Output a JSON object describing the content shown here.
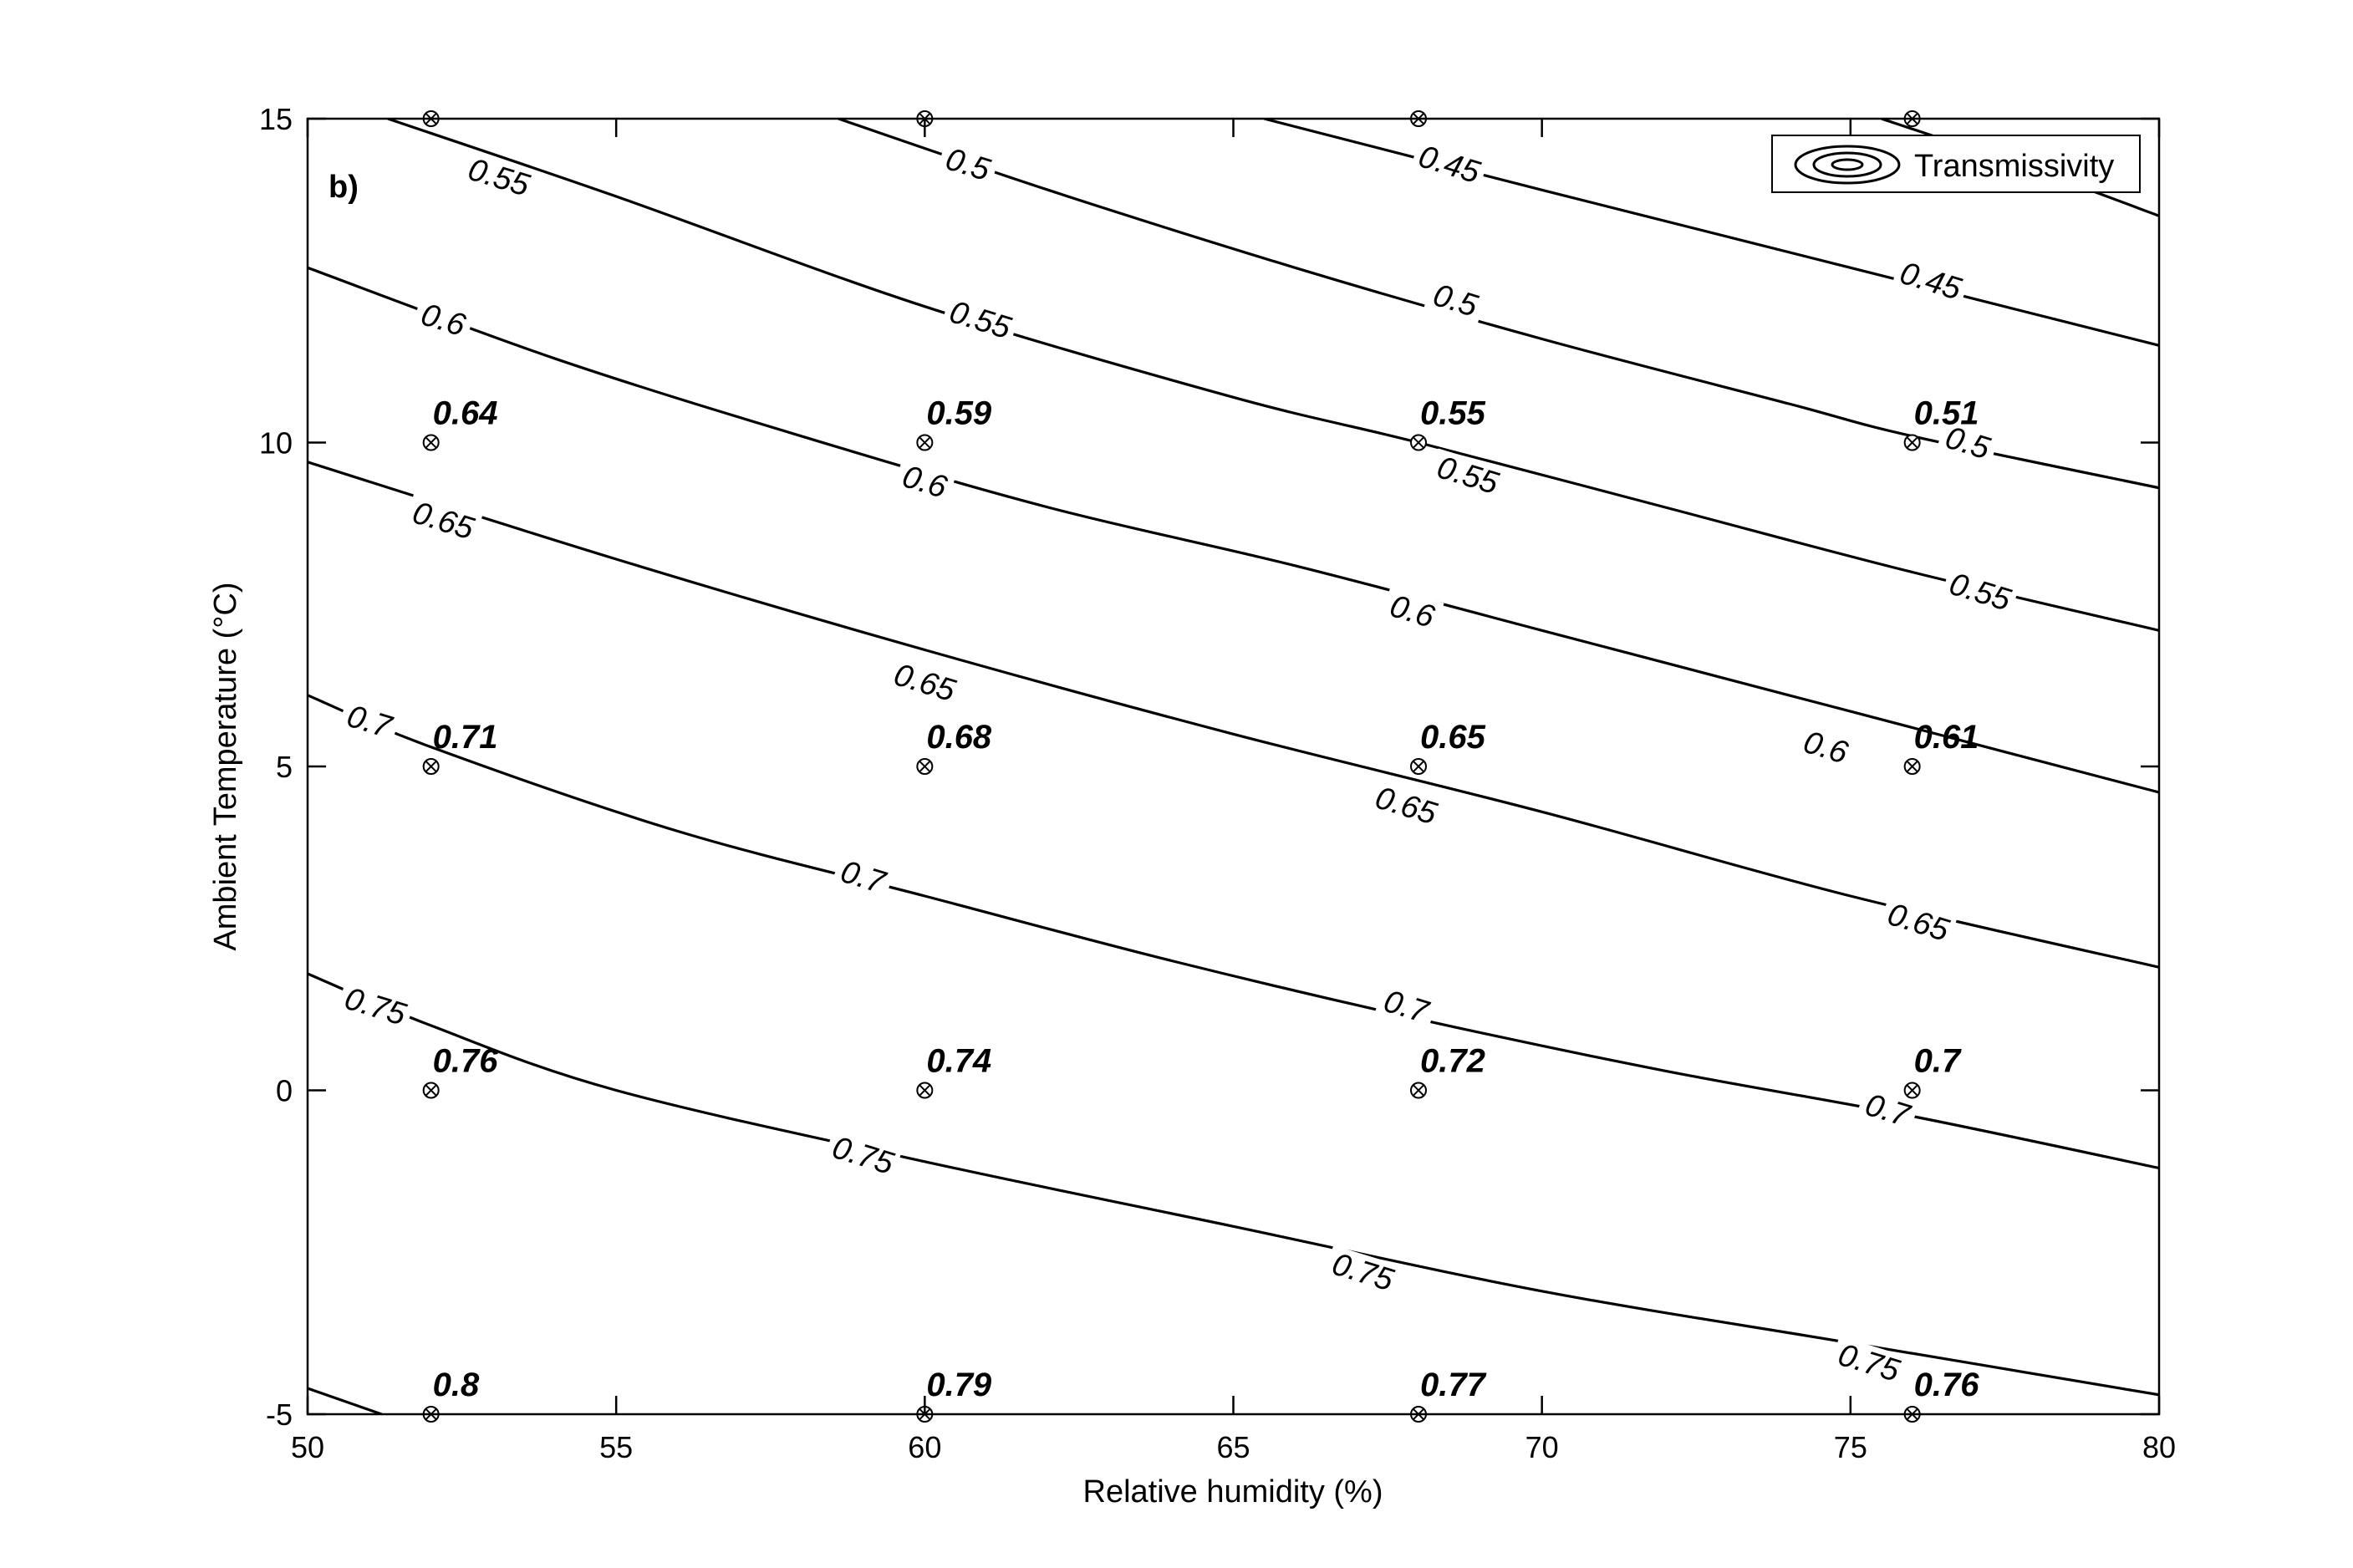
{
  "chart_data": {
    "type": "contour",
    "panel_label": "b)",
    "xlabel": "Relative humidity (%)",
    "ylabel": "Ambient Temperature (°C)",
    "xlim": [
      50,
      80
    ],
    "ylim": [
      -5,
      15
    ],
    "xticks": [
      50,
      55,
      60,
      65,
      70,
      75,
      80
    ],
    "yticks": [
      -5,
      0,
      5,
      10,
      15
    ],
    "grid": false,
    "legend": {
      "entries": [
        "Transmissivity"
      ],
      "placement": "top-right"
    },
    "series_name": "Transmissivity",
    "contours": [
      {
        "level": 0.45,
        "points": [
          [
            65.5,
            15
          ],
          [
            70,
            13.9
          ],
          [
            75,
            12.7
          ],
          [
            80,
            11.5
          ]
        ]
      },
      {
        "level": 0.45,
        "points": [
          [
            75.5,
            15
          ],
          [
            78,
            14.2
          ],
          [
            80,
            13.5
          ]
        ]
      },
      {
        "level": 0.5,
        "points": [
          [
            58.6,
            15
          ],
          [
            62,
            13.9
          ],
          [
            66,
            12.7
          ],
          [
            70,
            11.6
          ],
          [
            74,
            10.6
          ],
          [
            76,
            10.1
          ],
          [
            80,
            9.3
          ]
        ]
      },
      {
        "level": 0.55,
        "points": [
          [
            51.3,
            15
          ],
          [
            55,
            13.8
          ],
          [
            60,
            12.1
          ],
          [
            65,
            10.7
          ],
          [
            68,
            10.0
          ],
          [
            72,
            9.0
          ],
          [
            76,
            8.0
          ],
          [
            80,
            7.1
          ]
        ]
      },
      {
        "level": 0.6,
        "points": [
          [
            50,
            12.7
          ],
          [
            54,
            11.3
          ],
          [
            58,
            10.1
          ],
          [
            62,
            9.0
          ],
          [
            66,
            8.1
          ],
          [
            70,
            7.1
          ],
          [
            74,
            6.1
          ],
          [
            76,
            5.6
          ],
          [
            80,
            4.6
          ]
        ]
      },
      {
        "level": 0.65,
        "points": [
          [
            50,
            9.7
          ],
          [
            55,
            8.2
          ],
          [
            60,
            6.8
          ],
          [
            65,
            5.5
          ],
          [
            70,
            4.3
          ],
          [
            75,
            3.0
          ],
          [
            80,
            1.9
          ]
        ]
      },
      {
        "level": 0.7,
        "points": [
          [
            50,
            6.1
          ],
          [
            52,
            5.3
          ],
          [
            56,
            4.0
          ],
          [
            60,
            3.0
          ],
          [
            64,
            2.0
          ],
          [
            68,
            1.1
          ],
          [
            72,
            0.3
          ],
          [
            76,
            -0.4
          ],
          [
            80,
            -1.2
          ]
        ]
      },
      {
        "level": 0.75,
        "points": [
          [
            50,
            1.8
          ],
          [
            52,
            1.0
          ],
          [
            55,
            0.0
          ],
          [
            60,
            -1.1
          ],
          [
            65,
            -2.1
          ],
          [
            70,
            -3.1
          ],
          [
            75,
            -3.9
          ],
          [
            80,
            -4.7
          ]
        ]
      },
      {
        "level": 0.8,
        "points": [
          [
            50,
            -4.6
          ],
          [
            51.2,
            -5
          ]
        ]
      }
    ],
    "contour_labels": [
      {
        "text": "0.55",
        "x": 53.1,
        "y": 14.1,
        "angle": 17
      },
      {
        "text": "0.5",
        "x": 60.7,
        "y": 14.3,
        "angle": 17
      },
      {
        "text": "0.45",
        "x": 68.5,
        "y": 14.3,
        "angle": 17
      },
      {
        "text": "0.55",
        "x": 60.9,
        "y": 11.9,
        "angle": 17
      },
      {
        "text": "0.5",
        "x": 68.6,
        "y": 12.2,
        "angle": 17
      },
      {
        "text": "0.45",
        "x": 76.3,
        "y": 12.5,
        "angle": 17
      },
      {
        "text": "0.6",
        "x": 52.2,
        "y": 11.9,
        "angle": 17
      },
      {
        "text": "0.6",
        "x": 60.0,
        "y": 9.4,
        "angle": 17
      },
      {
        "text": "0.55",
        "x": 68.8,
        "y": 9.5,
        "angle": 17
      },
      {
        "text": "0.5",
        "x": 76.9,
        "y": 10.0,
        "angle": 17
      },
      {
        "text": "0.65",
        "x": 52.2,
        "y": 8.8,
        "angle": 17
      },
      {
        "text": "0.6",
        "x": 67.9,
        "y": 7.4,
        "angle": 17
      },
      {
        "text": "0.55",
        "x": 77.1,
        "y": 7.7,
        "angle": 17
      },
      {
        "text": "0.65",
        "x": 60.0,
        "y": 6.3,
        "angle": 17
      },
      {
        "text": "0.6",
        "x": 74.6,
        "y": 5.3,
        "angle": 17
      },
      {
        "text": "0.7",
        "x": 51.0,
        "y": 5.7,
        "angle": 17
      },
      {
        "text": "0.65",
        "x": 67.8,
        "y": 4.4,
        "angle": 17
      },
      {
        "text": "0.7",
        "x": 59.0,
        "y": 3.3,
        "angle": 17
      },
      {
        "text": "0.65",
        "x": 76.1,
        "y": 2.6,
        "angle": 17
      },
      {
        "text": "0.75",
        "x": 51.1,
        "y": 1.3,
        "angle": 17
      },
      {
        "text": "0.7",
        "x": 67.8,
        "y": 1.3,
        "angle": 17
      },
      {
        "text": "0.75",
        "x": 59.0,
        "y": -1.0,
        "angle": 17
      },
      {
        "text": "0.7",
        "x": 75.6,
        "y": -0.3,
        "angle": 17
      },
      {
        "text": "0.75",
        "x": 67.1,
        "y": -2.8,
        "angle": 17
      },
      {
        "text": "0.75",
        "x": 75.3,
        "y": -4.2,
        "angle": 17
      }
    ],
    "points": [
      {
        "x": 52,
        "y": 15,
        "label": ""
      },
      {
        "x": 60,
        "y": 15,
        "label": ""
      },
      {
        "x": 68,
        "y": 15,
        "label": ""
      },
      {
        "x": 76,
        "y": 15,
        "label": ""
      },
      {
        "x": 52,
        "y": 10,
        "label": "0.64"
      },
      {
        "x": 60,
        "y": 10,
        "label": "0.59"
      },
      {
        "x": 68,
        "y": 10,
        "label": "0.55"
      },
      {
        "x": 76,
        "y": 10,
        "label": "0.51"
      },
      {
        "x": 52,
        "y": 5,
        "label": "0.71"
      },
      {
        "x": 60,
        "y": 5,
        "label": "0.68"
      },
      {
        "x": 68,
        "y": 5,
        "label": "0.65"
      },
      {
        "x": 76,
        "y": 5,
        "label": "0.61"
      },
      {
        "x": 52,
        "y": 0,
        "label": "0.76"
      },
      {
        "x": 60,
        "y": 0,
        "label": "0.74"
      },
      {
        "x": 68,
        "y": 0,
        "label": "0.72"
      },
      {
        "x": 76,
        "y": 0,
        "label": "0.7"
      },
      {
        "x": 52,
        "y": -5,
        "label": "0.8"
      },
      {
        "x": 60,
        "y": -5,
        "label": "0.79"
      },
      {
        "x": 68,
        "y": -5,
        "label": "0.77"
      },
      {
        "x": 76,
        "y": -5,
        "label": "0.76"
      }
    ]
  }
}
